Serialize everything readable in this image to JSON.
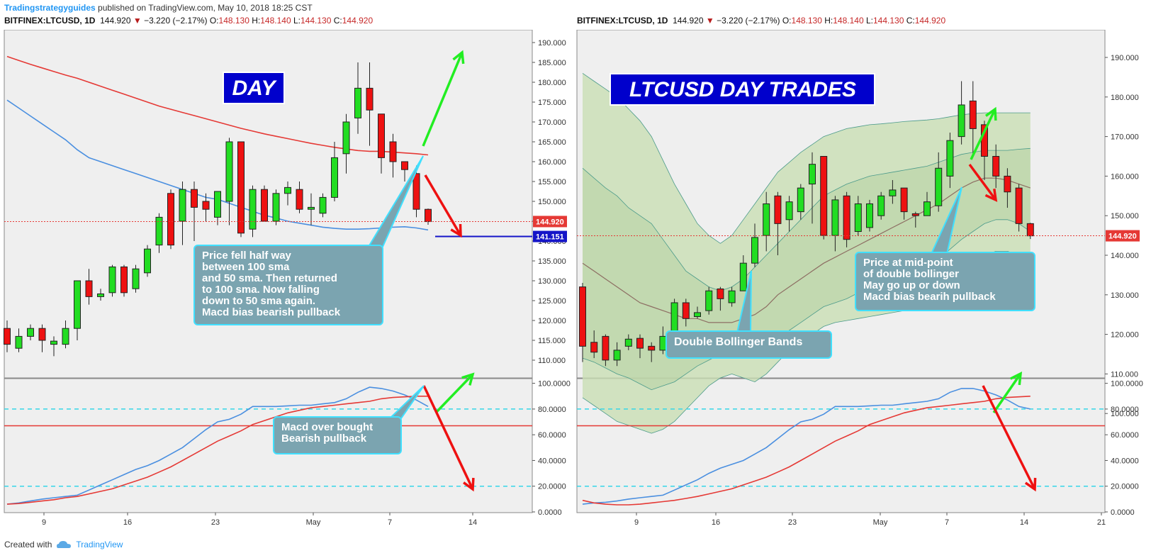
{
  "header": {
    "publisher": "Tradingstrategyguides",
    "published_text": "published on TradingView.com, May 10, 2018 18:25 CST"
  },
  "symbol_line": {
    "symbol": "BITFINEX:LTCUSD, 1D",
    "last": "144.920",
    "arrow": "▼",
    "change": "−3.220 (−2.17%)",
    "o_label": "O:",
    "o": "148.130",
    "h_label": "H:",
    "h": "148.140",
    "l_label": "L:",
    "l": "144.130",
    "c_label": "C:",
    "c": "144.920"
  },
  "footer": {
    "created_with": "Created with",
    "brand": "TradingView",
    "logo_icon": "tradingview-cloud-icon"
  },
  "colors": {
    "bull": "#22dd22",
    "bear": "#ee1111",
    "sma100": "#e53935",
    "sma50": "#4a8fe0",
    "stoch_k": "#4a8fe0",
    "stoch_d": "#e53935",
    "level": "#36d6e8",
    "midline": "#e53935",
    "callout_bg": "#7ba4b0",
    "callout_border": "#40e0ff",
    "title_bg": "#0000cc",
    "band_fill": "#c9dfb4",
    "price_tag": "#e53935",
    "support_tag": "#1515c8"
  },
  "chart_data": [
    {
      "type": "candlestick",
      "title": "DAY",
      "x_ticks": [
        "9",
        "16",
        "23",
        "May",
        "7",
        "14"
      ],
      "y_ticks": [
        "190.000",
        "185.000",
        "180.000",
        "175.000",
        "170.000",
        "165.000",
        "160.000",
        "155.000",
        "150.000",
        "145.000",
        "140.000",
        "135.000",
        "130.000",
        "125.000",
        "120.000",
        "115.000",
        "110.000"
      ],
      "ylim": [
        108,
        192
      ],
      "grid": false,
      "current_price_label": "144.920",
      "support_label": "141.151",
      "support_value": 141.151,
      "candles": [
        [
          118,
          114,
          120,
          112
        ],
        [
          113,
          116,
          118,
          112
        ],
        [
          116,
          118,
          119,
          115
        ],
        [
          118,
          115,
          119,
          112
        ],
        [
          114,
          114.8,
          116,
          111
        ],
        [
          114,
          118,
          120,
          113
        ],
        [
          118,
          130,
          130,
          115
        ],
        [
          130,
          126,
          133,
          124
        ],
        [
          126,
          126.7,
          128,
          125
        ],
        [
          127,
          133.5,
          134,
          126
        ],
        [
          133.5,
          127,
          134,
          126
        ],
        [
          128,
          133,
          134,
          127
        ],
        [
          132,
          138,
          139,
          131
        ],
        [
          139,
          146,
          147,
          137
        ],
        [
          152,
          139,
          153,
          138
        ],
        [
          145,
          153,
          155,
          139
        ],
        [
          153,
          148.5,
          155,
          140
        ],
        [
          150,
          148,
          152,
          145
        ],
        [
          146,
          152.5,
          152,
          144
        ],
        [
          150,
          165,
          166,
          144
        ],
        [
          165,
          142,
          165,
          141
        ],
        [
          143,
          153,
          154,
          141
        ],
        [
          153,
          145,
          154,
          145
        ],
        [
          145,
          152,
          153,
          144
        ],
        [
          152,
          153.5,
          155,
          149
        ],
        [
          153,
          148,
          155,
          147
        ],
        [
          148,
          148.5,
          152,
          144
        ],
        [
          147,
          151,
          152,
          146
        ],
        [
          151,
          161,
          165,
          150
        ],
        [
          162,
          170,
          172,
          157
        ],
        [
          171,
          178.5,
          185,
          167
        ],
        [
          178.5,
          173,
          185,
          164
        ],
        [
          172,
          161,
          172,
          157
        ],
        [
          165,
          160,
          167,
          156
        ],
        [
          160,
          158,
          160,
          155
        ],
        [
          157,
          148,
          159,
          146
        ],
        [
          148,
          144.9,
          148.2,
          144.1
        ]
      ],
      "series": [
        {
          "name": "100 sma",
          "values": [
            186.5,
            185.5,
            184.5,
            183.6,
            182.7,
            181.8,
            181,
            180,
            179,
            178,
            177,
            176,
            175,
            174,
            173.2,
            172.4,
            171.6,
            170.8,
            170,
            169.2,
            168.4,
            167.7,
            167,
            166.4,
            165.8,
            165.2,
            164.6,
            164.1,
            163.6,
            163.2,
            162.8,
            162.6,
            162.6,
            162.4,
            162.2,
            162,
            161.7
          ]
        },
        {
          "name": "50 sma",
          "values": [
            175.5,
            173.5,
            171.5,
            169.5,
            167.5,
            165.5,
            163,
            161,
            160,
            159,
            158,
            157,
            156,
            155,
            154,
            153,
            152,
            151,
            150.5,
            149.5,
            148.5,
            147.5,
            146.5,
            145.8,
            145,
            144.5,
            144,
            143.5,
            143.2,
            143,
            143,
            143.1,
            143.3,
            143.5,
            143.6,
            143.3,
            142.8
          ]
        }
      ],
      "annotation": "Price fell half way\nbetween 100 sma\nand 50 sma. Then returned\nto 100 sma. Now falling\ndown to 50 sma again.\nMacd bias bearish pullback"
    },
    {
      "type": "line",
      "title": "",
      "y_ticks": [
        "100.0000",
        "80.0000",
        "60.0000",
        "40.0000",
        "20.0000",
        "0.0000"
      ],
      "ylim": [
        0,
        102
      ],
      "levels": [
        80,
        20
      ],
      "midline": 67,
      "series": [
        {
          "name": "K",
          "values": [
            6,
            7,
            8.5,
            10,
            11,
            12,
            13,
            17,
            21,
            25,
            29,
            33,
            36,
            40,
            45,
            50,
            57,
            64,
            70,
            72,
            76,
            82,
            82,
            82,
            82.5,
            83,
            83,
            84,
            85,
            88,
            93,
            97,
            96,
            94,
            91,
            87,
            82
          ]
        },
        {
          "name": "D",
          "values": [
            6,
            6.5,
            7.5,
            8.5,
            9.5,
            11,
            12,
            14,
            16,
            18,
            21,
            24,
            27,
            31,
            35,
            40,
            45,
            50,
            55,
            59,
            63,
            68,
            71,
            74,
            77,
            79,
            81,
            82,
            83,
            84,
            85,
            86,
            88,
            89,
            89.5,
            90,
            90
          ]
        }
      ],
      "annotation": "Macd over bought\nBearish pullback"
    },
    {
      "type": "candlestick",
      "title": "LTCUSD DAY TRADES",
      "x_ticks": [
        "9",
        "16",
        "23",
        "May",
        "7",
        "14",
        "21"
      ],
      "y_ticks": [
        "190.000",
        "180.000",
        "170.000",
        "160.000",
        "150.000",
        "140.000",
        "130.000",
        "120.000",
        "110.000",
        "100.000"
      ],
      "ylim": [
        95,
        196
      ],
      "grid": false,
      "current_price_label": "144.920",
      "candles": [
        [
          132,
          117,
          133,
          113
        ],
        [
          118,
          115.5,
          121,
          114
        ],
        [
          119.5,
          113.5,
          120,
          112
        ],
        [
          113.5,
          116,
          118,
          112
        ],
        [
          117,
          118.8,
          120,
          116
        ],
        [
          119,
          116.5,
          120,
          114
        ],
        [
          117,
          116,
          118,
          113
        ],
        [
          116,
          119.5,
          122,
          115
        ],
        [
          119.5,
          128,
          129,
          119
        ],
        [
          128,
          124,
          129,
          122
        ],
        [
          124.5,
          125.5,
          127,
          124
        ],
        [
          126,
          131,
          132,
          125
        ],
        [
          131.5,
          129,
          132,
          126
        ],
        [
          128,
          131,
          132,
          127
        ],
        [
          131,
          138,
          140,
          131
        ],
        [
          138,
          144.5,
          148,
          137
        ],
        [
          145,
          153,
          156,
          141
        ],
        [
          155,
          148,
          156,
          140
        ],
        [
          149,
          153.5,
          155,
          146
        ],
        [
          151,
          157,
          158,
          149
        ],
        [
          158,
          163,
          166,
          148
        ],
        [
          165,
          145,
          165,
          144
        ],
        [
          145,
          154,
          155,
          141
        ],
        [
          155,
          144,
          156,
          142
        ],
        [
          146,
          153,
          155,
          145
        ],
        [
          147,
          153,
          154,
          146
        ],
        [
          150,
          155,
          156,
          149
        ],
        [
          155,
          156.5,
          159,
          153
        ],
        [
          157,
          151,
          157,
          149
        ],
        [
          150.5,
          150,
          151,
          147
        ],
        [
          150,
          153.5,
          156,
          150
        ],
        [
          152.5,
          162,
          166,
          151
        ],
        [
          160,
          169,
          171,
          157
        ],
        [
          170,
          178,
          184,
          168
        ],
        [
          179,
          172,
          184,
          165
        ],
        [
          173,
          165,
          174,
          159
        ],
        [
          165,
          160,
          168,
          157
        ],
        [
          160,
          156,
          162,
          152
        ],
        [
          157,
          148,
          158,
          146
        ],
        [
          148,
          144.9,
          148.2,
          144.1
        ]
      ],
      "series": [
        {
          "name": "middle band",
          "values": [
            138,
            136,
            134,
            132,
            130,
            128,
            127,
            126,
            125,
            124,
            124,
            123,
            123,
            123,
            124,
            125,
            127,
            130,
            132,
            134,
            136,
            138,
            139.5,
            141,
            142.5,
            144,
            145.5,
            147,
            148.5,
            150,
            151.5,
            153,
            155,
            157,
            158.5,
            159.5,
            159.5,
            159,
            158,
            157
          ]
        },
        {
          "name": "upper band 2",
          "values": [
            186,
            184,
            182,
            180,
            177,
            174,
            170,
            164,
            158,
            153,
            148,
            145,
            143,
            145,
            149,
            153,
            157,
            161,
            163.5,
            166,
            168,
            170,
            171,
            172,
            172.5,
            173,
            173.2,
            173.5,
            173.8,
            174,
            174.2,
            174.5,
            175,
            175.5,
            175.8,
            176,
            176,
            176,
            176,
            176
          ]
        },
        {
          "name": "upper band 1",
          "values": [
            162,
            159.5,
            157,
            155,
            152,
            150,
            148,
            144,
            140,
            136,
            134,
            132,
            131,
            132,
            134,
            137,
            140,
            143,
            146,
            149,
            152,
            155,
            156.5,
            158,
            159,
            160,
            160.5,
            161,
            161.5,
            162,
            162.5,
            163.5,
            164.5,
            165.5,
            166,
            166.5,
            166.5,
            166.5,
            166.8,
            167
          ]
        },
        {
          "name": "lower band 1",
          "values": [
            114,
            113,
            111.5,
            110,
            109,
            107.5,
            106,
            107,
            108,
            110,
            112,
            113.5,
            115,
            115,
            115,
            115.5,
            117,
            119,
            121,
            123,
            125,
            127,
            128,
            129,
            130.5,
            132,
            133,
            134,
            135,
            136,
            137.5,
            139,
            141.5,
            144,
            146,
            148,
            149,
            149,
            148,
            146
          ]
        },
        {
          "name": "lower band 2",
          "values": [
            104,
            102,
            100,
            98,
            97,
            96,
            95,
            96,
            98,
            101,
            104,
            107,
            109,
            110,
            109,
            108,
            110,
            113,
            116,
            118,
            120,
            122,
            123,
            123.5,
            124,
            124.5,
            125,
            125.5,
            126,
            126.5,
            127,
            128.5,
            131,
            134,
            137,
            140,
            141,
            141,
            140,
            139
          ]
        }
      ],
      "annotations": [
        "Price at mid-point\nof double bollinger\nMay go up or down\nMacd bias bearih pullback",
        "Double Bollinger Bands"
      ]
    },
    {
      "type": "line",
      "title": "",
      "y_ticks": [
        "100.0000",
        "80.0000",
        "60.0000",
        "40.0000",
        "20.0000",
        "0.0000"
      ],
      "ylim": [
        0,
        102
      ],
      "levels": [
        80,
        20
      ],
      "midline": 67,
      "series": [
        {
          "name": "K",
          "values": [
            6,
            7,
            7.5,
            8.5,
            10,
            11,
            12,
            13,
            17,
            21,
            25,
            30,
            34,
            37,
            40,
            45,
            50,
            57,
            64,
            70,
            72,
            76,
            82,
            82,
            82,
            82.5,
            83,
            83,
            84,
            85,
            86,
            88,
            93,
            96,
            96,
            94,
            91,
            87,
            82,
            80
          ]
        },
        {
          "name": "D",
          "values": [
            9,
            7,
            6,
            5.5,
            5.5,
            6,
            7,
            8,
            9,
            10.5,
            12,
            14,
            16,
            18,
            21,
            24,
            27,
            31,
            35,
            40,
            45,
            50,
            55,
            59,
            63,
            68,
            71,
            74,
            77,
            79,
            81,
            82,
            83,
            84,
            85,
            86,
            88,
            89,
            89.5,
            90
          ]
        }
      ]
    }
  ]
}
